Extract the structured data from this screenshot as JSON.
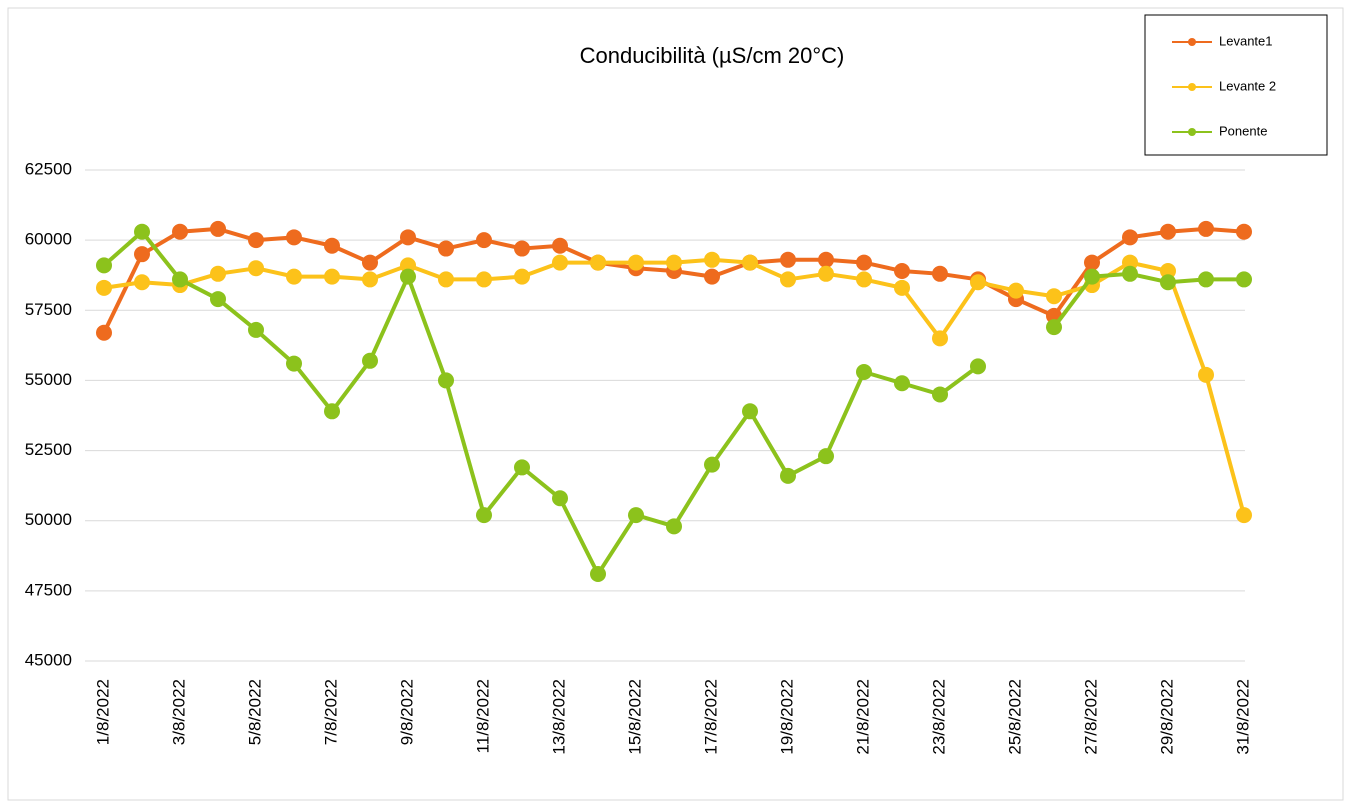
{
  "chart_data": {
    "type": "line",
    "title": "Conducibilità (µS/cm 20°C)",
    "categories": [
      "1/8/2022",
      null,
      "3/8/2022",
      null,
      "5/8/2022",
      null,
      "7/8/2022",
      null,
      "9/8/2022",
      null,
      "11/8/2022",
      null,
      "13/8/2022",
      null,
      "15/8/2022",
      null,
      "17/8/2022",
      null,
      "19/8/2022",
      null,
      "21/8/2022",
      null,
      "23/8/2022",
      null,
      "25/8/2022",
      null,
      "27/8/2022",
      null,
      "29/8/2022",
      null,
      "31/8/2022"
    ],
    "series": [
      {
        "name": "Levante1",
        "color": "#ee6b1e",
        "values": [
          56700,
          59500,
          60300,
          60400,
          60000,
          60100,
          59800,
          59200,
          60100,
          59700,
          60000,
          59700,
          59800,
          59200,
          59000,
          58900,
          58700,
          59200,
          59300,
          59300,
          59200,
          58900,
          58800,
          58600,
          57900,
          57300,
          59200,
          60100,
          60300,
          60400,
          60300
        ]
      },
      {
        "name": "Levante 2",
        "color": "#fcc21a",
        "values": [
          58300,
          58500,
          58400,
          58800,
          59000,
          58700,
          58700,
          58600,
          59100,
          58600,
          58600,
          58700,
          59200,
          59200,
          59200,
          59200,
          59300,
          59200,
          58600,
          58800,
          58600,
          58300,
          56500,
          58500,
          58200,
          58000,
          58400,
          59200,
          58900,
          55200,
          50200
        ]
      },
      {
        "name": "Ponente",
        "color": "#8cc21c",
        "values": [
          59100,
          60300,
          58600,
          57900,
          56800,
          55600,
          53900,
          55700,
          58700,
          55000,
          50200,
          51900,
          50800,
          48100,
          50200,
          49800,
          52000,
          53900,
          51600,
          52300,
          55300,
          54900,
          54500,
          55500,
          null,
          56900,
          58700,
          58800,
          58500,
          58600,
          58600
        ]
      }
    ],
    "ylim": [
      45000,
      62500
    ],
    "yticks": [
      45000,
      47500,
      50000,
      52500,
      55000,
      57500,
      60000,
      62500
    ],
    "grid": true,
    "legend": "top-right"
  }
}
